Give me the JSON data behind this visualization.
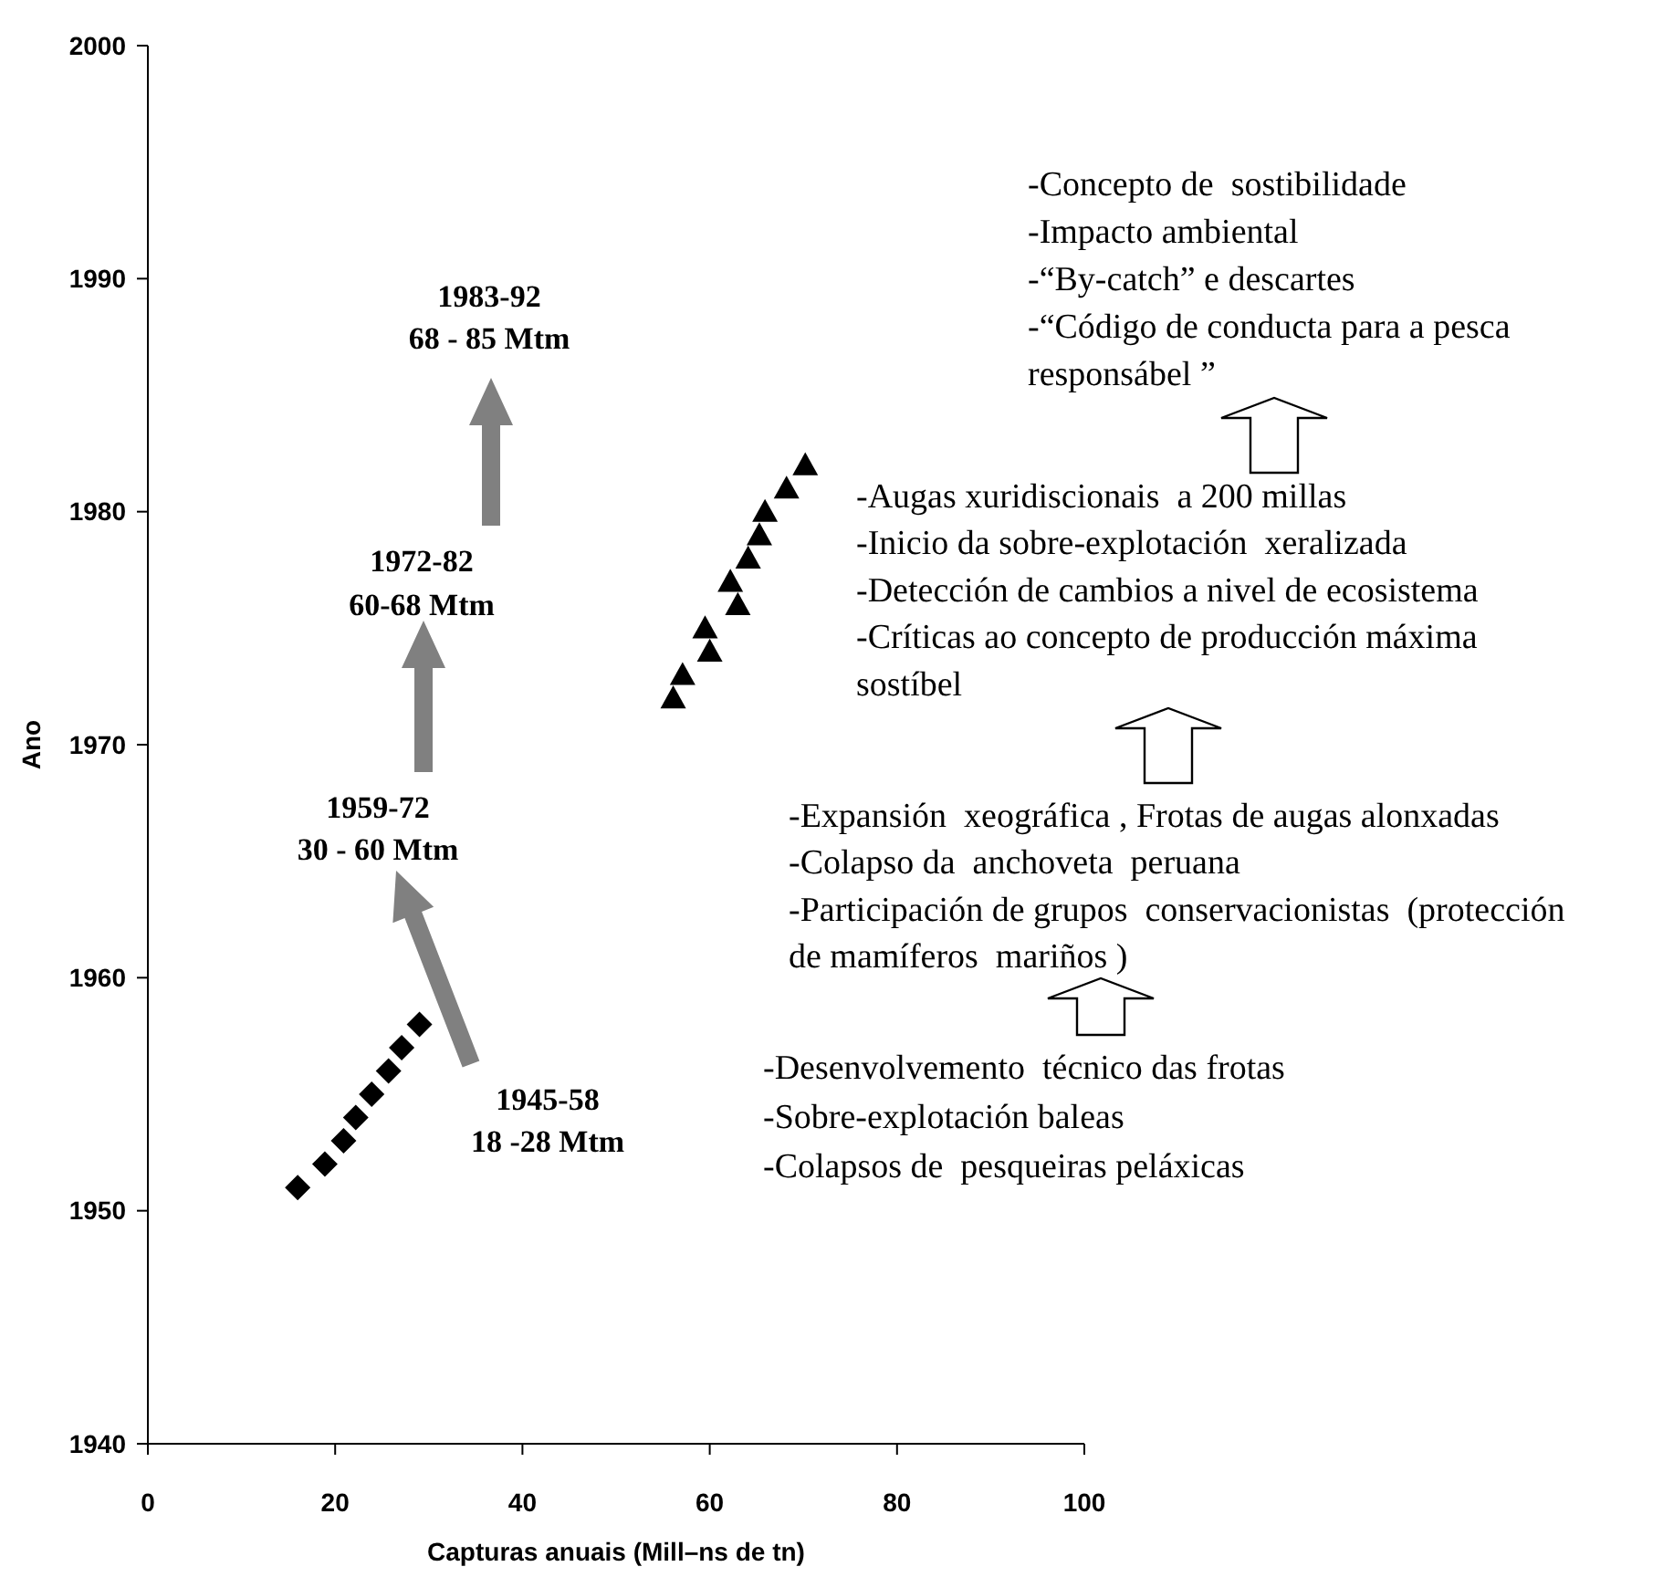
{
  "chart_data": {
    "type": "scatter",
    "xlabel": "Capturas anuais (Mill–ns de tn)",
    "ylabel": "Ano",
    "xlim": [
      0,
      100
    ],
    "xticks": [
      0,
      20,
      40,
      60,
      80,
      100
    ],
    "ylim": [
      1940,
      2000
    ],
    "yticks": [
      1940,
      1950,
      1960,
      1970,
      1980,
      1990,
      2000
    ],
    "grid": false,
    "series": [
      {
        "color": "#000000",
        "marker": "diamond",
        "x": [
          16,
          18.9,
          20.9,
          22.2,
          23.9,
          25.7,
          27.1,
          29
        ],
        "values": [
          1951,
          1952,
          1953,
          1954,
          1955,
          1956,
          1957,
          1958
        ]
      },
      {
        "color": "#000000",
        "marker": "triangle",
        "x": [
          56.1,
          57.1,
          60,
          59.5,
          63,
          62.2,
          64.1,
          65.3,
          65.9,
          68.2,
          70.2
        ],
        "values": [
          1972,
          1973,
          1974,
          1975,
          1976,
          1977,
          1978,
          1979,
          1980,
          1981,
          1982
        ]
      }
    ],
    "annotations": [
      "1945-58\n18 -28 Mtm",
      "1959-72\n30 - 60 Mtm",
      "1972-82\n60-68 Mtm",
      "1983-92\n68 - 85 Mtm",
      "-Desenvolvemento  técnico das frotas\n-Sobre-explotación baleas\n-Colapsos de  pesqueiras peláxicas",
      "-Expansión  xeográfica , Frotas de augas alonxadas\n-Colapso da  anchoveta  peruana\n-Participación de grupos  conservacionistas  (protección\nde mamíferos  mariños )",
      "-Augas xuridiscionais  a 200 millas\n-Inicio da sobre-explotación  xeralizada\n-Detección de cambios a nivel de ecosistema\n-Críticas ao concepto de producción máxima\nsostíbel",
      "-Concepto de  sostibilidade\n-Impacto ambiental\n-“By-catch” e descartes\n-“Código de conducta para a pesca\nresponsábel ”"
    ]
  }
}
